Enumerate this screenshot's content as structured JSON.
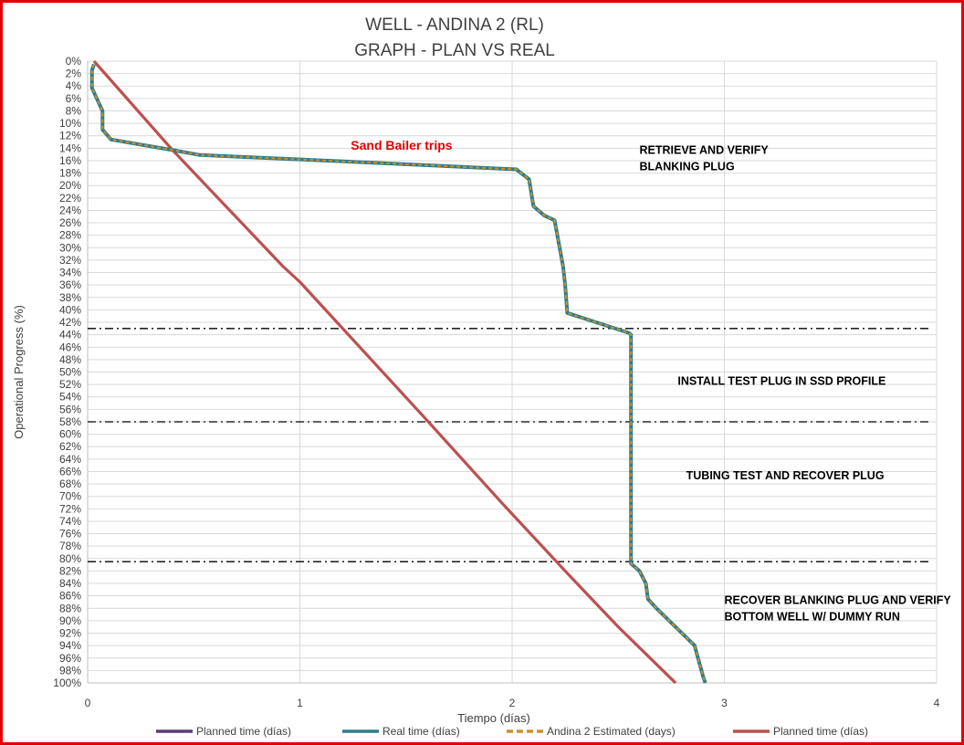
{
  "chart_data": {
    "type": "line",
    "title": [
      "WELL -  ANDINA 2 (RL)",
      "GRAPH  - PLAN VS REAL"
    ],
    "xlabel": "Tiempo (días)",
    "ylabel": "Operational Progress (%)",
    "xlim": [
      0,
      4
    ],
    "ylim": [
      0,
      100
    ],
    "y_inverted": true,
    "grid": true,
    "legend_position": "bottom",
    "x_ticks": [
      "0",
      "1",
      "2",
      "3",
      "4"
    ],
    "y_ticks": [
      "0%",
      "2%",
      "4%",
      "6%",
      "8%",
      "10%",
      "12%",
      "14%",
      "16%",
      "18%",
      "20%",
      "22%",
      "24%",
      "26%",
      "28%",
      "30%",
      "32%",
      "34%",
      "36%",
      "38%",
      "40%",
      "42%",
      "44%",
      "46%",
      "48%",
      "50%",
      "52%",
      "54%",
      "56%",
      "58%",
      "60%",
      "62%",
      "64%",
      "66%",
      "68%",
      "70%",
      "72%",
      "74%",
      "76%",
      "78%",
      "80%",
      "82%",
      "84%",
      "86%",
      "88%",
      "90%",
      "92%",
      "94%",
      "96%",
      "98%",
      "100%"
    ],
    "series": [
      {
        "name": "Planned time (días)",
        "color": "#5b3a7a",
        "style": "solid",
        "points": [
          [
            0.03,
            0
          ],
          [
            0.4,
            14.3
          ],
          [
            0.92,
            33
          ],
          [
            1.0,
            35.5
          ],
          [
            1.6,
            57.8
          ],
          [
            1.95,
            71
          ],
          [
            2.25,
            82
          ],
          [
            2.5,
            91
          ],
          [
            2.77,
            100
          ]
        ]
      },
      {
        "name": "Real time (días)",
        "color": "#2e7c8c",
        "style": "solid",
        "points": [
          [
            0.03,
            0.5
          ],
          [
            0.02,
            1.5
          ],
          [
            0.02,
            4.3
          ],
          [
            0.05,
            6.5
          ],
          [
            0.07,
            8
          ],
          [
            0.07,
            11
          ],
          [
            0.11,
            12.6
          ],
          [
            0.4,
            14.3
          ],
          [
            0.53,
            15.1
          ],
          [
            1.0,
            15.8
          ],
          [
            2.02,
            17.4
          ],
          [
            2.08,
            19
          ],
          [
            2.1,
            23.3
          ],
          [
            2.15,
            24.8
          ],
          [
            2.2,
            25.6
          ],
          [
            2.24,
            33
          ],
          [
            2.25,
            36
          ],
          [
            2.26,
            40.5
          ],
          [
            2.55,
            43.7
          ],
          [
            2.56,
            44
          ],
          [
            2.56,
            80.8
          ],
          [
            2.6,
            82
          ],
          [
            2.63,
            84
          ],
          [
            2.64,
            86.5
          ],
          [
            2.68,
            88
          ],
          [
            2.8,
            92
          ],
          [
            2.86,
            94
          ],
          [
            2.87,
            95.3
          ],
          [
            2.9,
            99
          ],
          [
            2.91,
            100
          ]
        ]
      },
      {
        "name": "Andina 2 Estimated (days)",
        "color": "#c8902e",
        "style": "dashed",
        "points": [
          [
            0.03,
            0.5
          ],
          [
            0.02,
            1.5
          ],
          [
            0.02,
            4.3
          ],
          [
            0.05,
            6.5
          ],
          [
            0.07,
            8
          ],
          [
            0.07,
            11
          ],
          [
            0.11,
            12.6
          ],
          [
            0.4,
            14.3
          ],
          [
            0.53,
            15.1
          ],
          [
            1.0,
            15.8
          ],
          [
            2.02,
            17.4
          ],
          [
            2.08,
            19
          ],
          [
            2.1,
            23.3
          ],
          [
            2.15,
            24.8
          ],
          [
            2.2,
            25.6
          ],
          [
            2.24,
            33
          ],
          [
            2.25,
            36
          ],
          [
            2.26,
            40.5
          ],
          [
            2.55,
            43.7
          ],
          [
            2.56,
            44
          ],
          [
            2.56,
            80.8
          ],
          [
            2.6,
            82
          ],
          [
            2.63,
            84
          ],
          [
            2.64,
            86.5
          ],
          [
            2.68,
            88
          ],
          [
            2.8,
            92
          ],
          [
            2.86,
            94
          ],
          [
            2.87,
            95.3
          ],
          [
            2.9,
            99
          ],
          [
            2.91,
            100
          ]
        ]
      },
      {
        "name": "Planned time (días)",
        "color": "#c0504d",
        "style": "solid",
        "points": [
          [
            0.03,
            0
          ],
          [
            0.4,
            14.3
          ],
          [
            0.92,
            33
          ],
          [
            1.0,
            35.5
          ],
          [
            1.6,
            57.8
          ],
          [
            1.95,
            71
          ],
          [
            2.25,
            82
          ],
          [
            2.5,
            91
          ],
          [
            2.77,
            100
          ]
        ]
      }
    ],
    "phase_lines": [
      43,
      58,
      80.5
    ],
    "annotations": [
      {
        "id": "sand-bailer",
        "lines": [
          "Sand Bailer trips"
        ],
        "color": "#e00000",
        "x": 1.24,
        "y": 13.5
      },
      {
        "id": "retrieve",
        "lines": [
          "RETRIEVE AND VERIFY",
          "BLANKING PLUG"
        ],
        "color": "#000000",
        "x": 2.6,
        "y": 14.2
      },
      {
        "id": "install",
        "lines": [
          "INSTALL TEST PLUG IN SSD PROFILE"
        ],
        "color": "#000000",
        "x": 2.78,
        "y": 51.3
      },
      {
        "id": "tubing",
        "lines": [
          "TUBING TEST AND RECOVER PLUG"
        ],
        "color": "#000000",
        "x": 2.82,
        "y": 66.5
      },
      {
        "id": "recover",
        "lines": [
          "RECOVER BLANKING PLUG AND VERIFY",
          "BOTTOM WELL W/ DUMMY RUN"
        ],
        "color": "#000000",
        "x": 3.0,
        "y": 86.6
      }
    ]
  }
}
